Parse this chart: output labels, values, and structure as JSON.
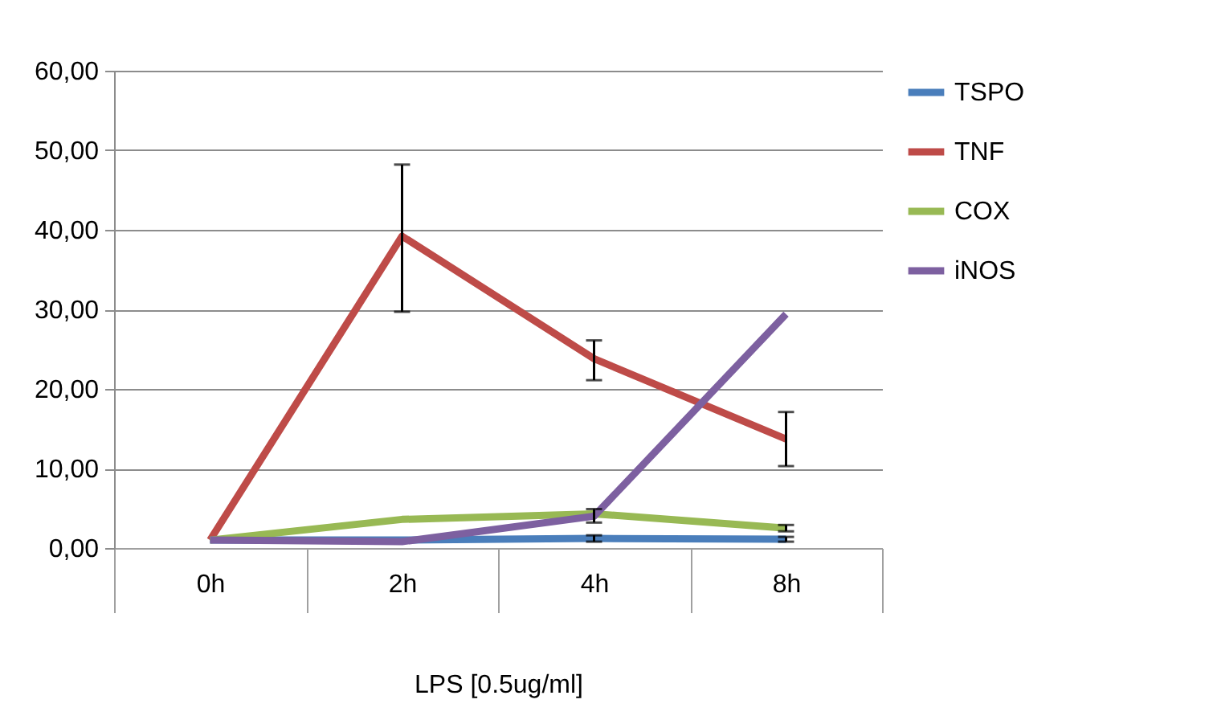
{
  "chart_data": {
    "type": "line",
    "xlabel": "LPS [0.5ug/ml]",
    "categories": [
      "0h",
      "2h",
      "4h",
      "8h"
    ],
    "ylim": [
      0,
      60
    ],
    "yticks": [
      {
        "value": 0,
        "label": "0,00"
      },
      {
        "value": 10,
        "label": "10,00"
      },
      {
        "value": 20,
        "label": "20,00"
      },
      {
        "value": 30,
        "label": "30,00"
      },
      {
        "value": 40,
        "label": "40,00"
      },
      {
        "value": 50,
        "label": "50,00"
      },
      {
        "value": 60,
        "label": "60,00"
      }
    ],
    "grid": "y",
    "legend": "right",
    "marker": "none",
    "line_style": "solid",
    "series": [
      {
        "name": "TSPO",
        "color": "#4a7ebb",
        "values": [
          1,
          1,
          1.2,
          1.1
        ],
        "errors": [
          null,
          null,
          [
            0.8,
            1.6
          ],
          [
            0.8,
            1.4
          ]
        ]
      },
      {
        "name": "TNF",
        "color": "#be4b48",
        "values": [
          1,
          39.2,
          23.8,
          13.7
        ],
        "errors": [
          null,
          [
            29.7,
            48.2
          ],
          [
            21.1,
            26.1
          ],
          [
            10.3,
            17.1
          ]
        ]
      },
      {
        "name": "COX",
        "color": "#98b954",
        "values": [
          1,
          3.6,
          4.3,
          2.5
        ],
        "errors": [
          null,
          null,
          null,
          [
            2.1,
            2.9
          ]
        ]
      },
      {
        "name": "iNOS",
        "color": "#7d60a0",
        "values": [
          1,
          0.8,
          4,
          29.4
        ],
        "errors": [
          null,
          null,
          [
            3.2,
            4.9
          ],
          null
        ]
      }
    ]
  }
}
